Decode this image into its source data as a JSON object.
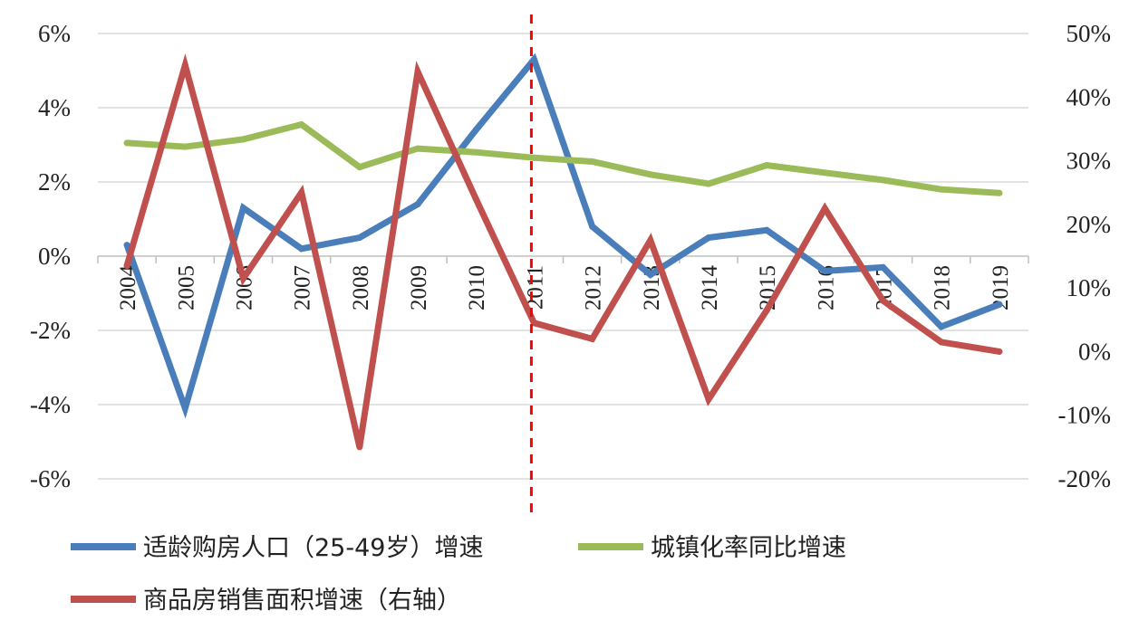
{
  "chart_data": {
    "type": "line",
    "categories": [
      "2004",
      "2005",
      "2006",
      "2007",
      "2008",
      "2009",
      "2010",
      "2011",
      "2012",
      "2013",
      "2014",
      "2015",
      "2016",
      "2017",
      "2018",
      "2019"
    ],
    "y_left": {
      "ticks": [
        "6%",
        "4%",
        "2%",
        "0%",
        "-2%",
        "-4%",
        "-6%"
      ],
      "range": [
        -6,
        6
      ],
      "unit": "%"
    },
    "y_right": {
      "ticks": [
        "50%",
        "40%",
        "30%",
        "20%",
        "10%",
        "0%",
        "-10%",
        "-20%"
      ],
      "range": [
        -20,
        50
      ],
      "unit": "%"
    },
    "grid": true,
    "legend_position": "bottom",
    "series": [
      {
        "name": "适龄购房人口（25-49岁）增速",
        "axis": "left",
        "color": "#4a7ebb",
        "values": [
          0.3,
          -4.1,
          1.3,
          0.2,
          0.5,
          1.4,
          3.4,
          5.3,
          0.8,
          -0.5,
          0.5,
          0.7,
          -0.4,
          -0.3,
          -1.9,
          -1.3
        ]
      },
      {
        "name": "城镇化率同比增速",
        "axis": "left",
        "color": "#9bbb59",
        "values": [
          3.05,
          2.95,
          3.15,
          3.55,
          2.4,
          2.9,
          2.8,
          2.65,
          2.55,
          2.2,
          1.95,
          2.45,
          2.25,
          2.05,
          1.8,
          1.7
        ]
      },
      {
        "name": "商品房销售面积增速（右轴）",
        "axis": "right",
        "color": "#c0504d",
        "values": [
          13.5,
          45.0,
          11.5,
          25.0,
          -15.0,
          44.0,
          24.0,
          4.5,
          2.0,
          17.5,
          -7.5,
          6.5,
          22.5,
          8.0,
          1.5,
          0.0
        ]
      }
    ],
    "reference_line": {
      "x": "2011",
      "style": "dashed",
      "color": "#ff0000"
    }
  }
}
